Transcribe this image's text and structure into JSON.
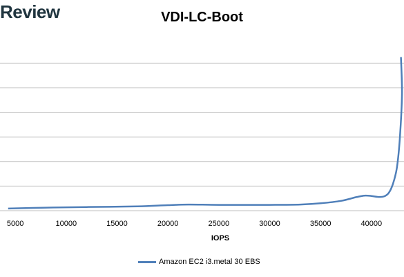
{
  "brand": {
    "name": "Review"
  },
  "chart_data": {
    "type": "line",
    "title": "VDI-LC-Boot",
    "xlabel": "IOPS",
    "ylabel": "",
    "xlim": [
      3500,
      43200
    ],
    "x_ticks": [
      5000,
      10000,
      15000,
      20000,
      25000,
      30000,
      35000,
      40000
    ],
    "y_gridlines": 6,
    "grid": true,
    "legend_position": "bottom",
    "series": [
      {
        "name": "Amazon EC2 i3.metal 30 EBS",
        "color": "#4f7fb9",
        "x": [
          4300,
          8000,
          12000,
          17000,
          20000,
          22000,
          25000,
          30000,
          33000,
          35000,
          37000,
          38500,
          39300,
          40000,
          40600,
          41200,
          41700,
          42100,
          42500,
          42800,
          43000,
          42900
        ],
        "y": [
          0.35,
          0.5,
          0.6,
          0.7,
          0.9,
          1.0,
          0.95,
          0.95,
          1.0,
          1.2,
          1.6,
          2.2,
          2.45,
          2.4,
          2.25,
          2.3,
          2.9,
          4.3,
          7.0,
          12.0,
          19.0,
          25.0
        ]
      }
    ]
  }
}
